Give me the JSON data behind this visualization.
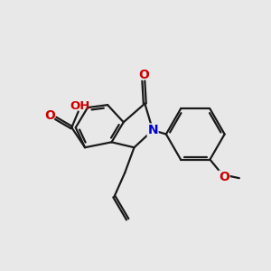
{
  "background_color": "#e8e8e8",
  "bond_color": "#1a1a1a",
  "nitrogen_color": "#0000cc",
  "oxygen_color": "#cc0000",
  "lw": 1.6,
  "figsize": [
    3.0,
    3.0
  ],
  "dpi": 100,
  "xlim": [
    0,
    10
  ],
  "ylim": [
    0,
    10
  ]
}
